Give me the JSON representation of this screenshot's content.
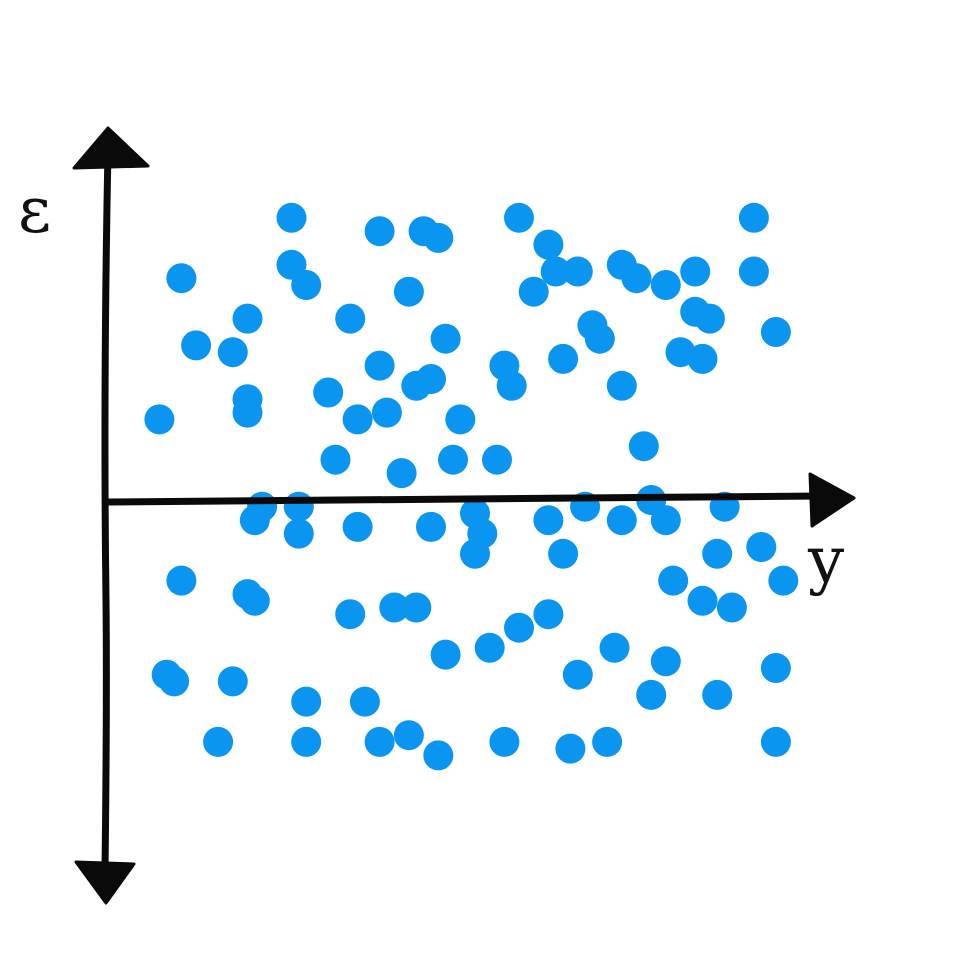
{
  "chart_data": {
    "type": "scatter",
    "title": "",
    "xlabel": "y",
    "ylabel": "ε",
    "grid": false,
    "legend": "none",
    "marker_color": "#0a96f0",
    "axis_color": "#0a0a0a",
    "xlim": [
      0,
      100
    ],
    "ylim": [
      -50,
      50
    ],
    "series": [
      {
        "points": [
          [
            10,
            33
          ],
          [
            7,
            12
          ],
          [
            12,
            23
          ],
          [
            25,
            42
          ],
          [
            25,
            35
          ],
          [
            19,
            27
          ],
          [
            27,
            32
          ],
          [
            33,
            27
          ],
          [
            37,
            40
          ],
          [
            37,
            20
          ],
          [
            43,
            40
          ],
          [
            41,
            31
          ],
          [
            42,
            17
          ],
          [
            46,
            24
          ],
          [
            48,
            12
          ],
          [
            38,
            13
          ],
          [
            34,
            12
          ],
          [
            45,
            39
          ],
          [
            44,
            18
          ],
          [
            30,
            16
          ],
          [
            31,
            6
          ],
          [
            40,
            4
          ],
          [
            47,
            6
          ],
          [
            53,
            6
          ],
          [
            56,
            42
          ],
          [
            54,
            20
          ],
          [
            55,
            17
          ],
          [
            58,
            31
          ],
          [
            61,
            34
          ],
          [
            62,
            21
          ],
          [
            60,
            38
          ],
          [
            64,
            34
          ],
          [
            66,
            26
          ],
          [
            67,
            24
          ],
          [
            70,
            35
          ],
          [
            70,
            17
          ],
          [
            73,
            8
          ],
          [
            72,
            33
          ],
          [
            76,
            32
          ],
          [
            80,
            34
          ],
          [
            78,
            22
          ],
          [
            82,
            27
          ],
          [
            80,
            28
          ],
          [
            81,
            21
          ],
          [
            88,
            42
          ],
          [
            88,
            34
          ],
          [
            91,
            25
          ],
          [
            17,
            22
          ],
          [
            19,
            15
          ],
          [
            19,
            13
          ],
          [
            20,
            -3
          ],
          [
            21,
            -1
          ],
          [
            26,
            -1
          ],
          [
            26,
            -5
          ],
          [
            34,
            -4
          ],
          [
            44,
            -4
          ],
          [
            51,
            -5
          ],
          [
            39,
            -16
          ],
          [
            50,
            -8
          ],
          [
            60,
            -3
          ],
          [
            62,
            -8
          ],
          [
            70,
            -3
          ],
          [
            76,
            -3
          ],
          [
            83,
            -8
          ],
          [
            81,
            -15
          ],
          [
            89,
            -7
          ],
          [
            92,
            -12
          ],
          [
            10,
            -12
          ],
          [
            19,
            -14
          ],
          [
            20,
            -15
          ],
          [
            33,
            -17
          ],
          [
            42,
            -16
          ],
          [
            46,
            -23
          ],
          [
            52,
            -22
          ],
          [
            56,
            -19
          ],
          [
            60,
            -17
          ],
          [
            64,
            -26
          ],
          [
            69,
            -22
          ],
          [
            77,
            -12
          ],
          [
            76,
            -24
          ],
          [
            85,
            -16
          ],
          [
            74,
            -29
          ],
          [
            8,
            -26
          ],
          [
            9,
            -27
          ],
          [
            17,
            -27
          ],
          [
            27,
            -30
          ],
          [
            35,
            -30
          ],
          [
            15,
            -36
          ],
          [
            27,
            -36
          ],
          [
            37,
            -36
          ],
          [
            41,
            -35
          ],
          [
            45,
            -38
          ],
          [
            54,
            -36
          ],
          [
            63,
            -37
          ],
          [
            68,
            -36
          ],
          [
            83,
            -29
          ],
          [
            91,
            -25
          ],
          [
            91,
            -36
          ],
          [
            74,
            0
          ],
          [
            84,
            -1
          ],
          [
            65,
            -1
          ],
          [
            50,
            -2
          ]
        ]
      }
    ]
  }
}
